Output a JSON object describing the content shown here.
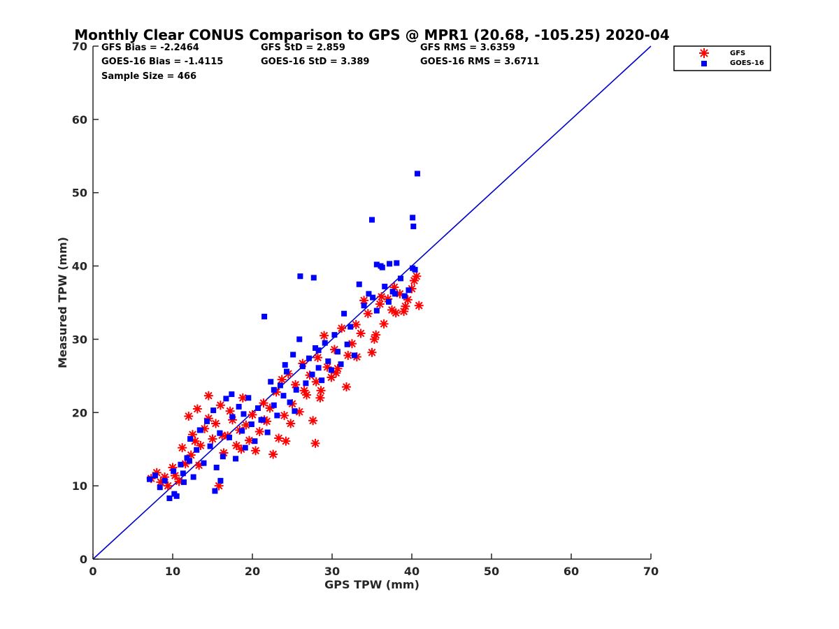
{
  "chart_data": {
    "type": "scatter",
    "title": "Monthly Clear CONUS Comparison to GPS @ MPR1 (20.68, -105.25) 2020-04",
    "xlabel": "GPS TPW (mm)",
    "ylabel": "Measured TPW (mm)",
    "xlim": [
      0,
      70
    ],
    "ylim": [
      0,
      70
    ],
    "xticks": [
      "0",
      "10",
      "20",
      "30",
      "40",
      "50",
      "60",
      "70"
    ],
    "yticks": [
      "0",
      "10",
      "20",
      "30",
      "40",
      "50",
      "60",
      "70"
    ],
    "grid": false,
    "legend_position": "top-right, outside",
    "stats": [
      "GFS Bias = -2.2464",
      "GFS StD = 2.859",
      "GFS RMS = 3.6359",
      "GOES-16 Bias = -1.4115",
      "GOES-16 StD = 3.389",
      "GOES-16 RMS = 3.6711",
      "Sample Size = 466"
    ],
    "reference_line": {
      "name": "1:1 line",
      "color": "#0000cc",
      "x": [
        0,
        70
      ],
      "y": [
        0,
        70
      ]
    },
    "series": [
      {
        "name": "GFS",
        "marker": "asterisk",
        "color": "#ff0000",
        "x": [
          7.3,
          8.0,
          8.5,
          9.0,
          9.4,
          10.0,
          10.3,
          10.8,
          11.2,
          11.6,
          12.0,
          12.3,
          12.8,
          13.1,
          13.3,
          13.5,
          14.0,
          14.5,
          15.0,
          15.4,
          15.8,
          16.0,
          16.4,
          16.9,
          17.2,
          17.5,
          18.0,
          18.4,
          18.8,
          19.2,
          19.6,
          20.0,
          20.4,
          20.9,
          21.4,
          21.8,
          22.2,
          22.6,
          23.0,
          23.3,
          23.7,
          24.0,
          24.2,
          24.5,
          25.0,
          25.4,
          25.9,
          26.3,
          26.8,
          27.2,
          27.6,
          28.0,
          28.2,
          28.6,
          29.0,
          29.4,
          29.9,
          30.3,
          30.7,
          31.2,
          31.8,
          32.5,
          33.1,
          33.6,
          34.0,
          34.5,
          35.0,
          35.5,
          36.0,
          36.5,
          37.0,
          37.5,
          38.0,
          38.5,
          39.0,
          39.5,
          40.0,
          40.3,
          40.6,
          40.9,
          35.3,
          36.2,
          37.8,
          39.2,
          12.5,
          14.5,
          16.2,
          18.6,
          21.5,
          24.8,
          26.5,
          28.5,
          30.5,
          32.0,
          33.0,
          27.9
        ],
        "y": [
          11.0,
          11.8,
          10.5,
          11.2,
          10.0,
          12.5,
          11.4,
          10.6,
          15.2,
          13.0,
          19.5,
          14.2,
          16.1,
          20.5,
          12.8,
          15.5,
          17.8,
          19.2,
          16.4,
          18.5,
          10.0,
          21.0,
          14.5,
          16.8,
          20.2,
          19.0,
          15.5,
          17.6,
          22.0,
          18.3,
          16.2,
          19.7,
          14.8,
          17.4,
          21.3,
          18.8,
          20.6,
          14.3,
          22.8,
          16.5,
          24.5,
          19.6,
          16.1,
          25.3,
          21.2,
          23.8,
          20.1,
          26.7,
          22.4,
          25.1,
          18.9,
          24.2,
          27.5,
          23.0,
          30.5,
          26.2,
          24.8,
          28.6,
          26.0,
          31.5,
          23.5,
          29.4,
          27.6,
          30.8,
          35.3,
          33.5,
          28.2,
          30.6,
          34.8,
          32.1,
          35.5,
          34.0,
          33.6,
          36.2,
          33.8,
          35.4,
          36.9,
          38.0,
          38.6,
          34.6,
          30.0,
          35.8,
          37.1,
          34.5,
          17.0,
          22.3,
          16.9,
          15.0,
          19.0,
          18.5,
          23.0,
          22.0,
          25.4,
          27.8,
          32.0,
          15.8
        ]
      },
      {
        "name": "GOES-16",
        "marker": "square",
        "color": "#0000ff",
        "x": [
          7.1,
          7.8,
          8.4,
          9.0,
          9.6,
          10.1,
          10.5,
          11.0,
          11.4,
          11.8,
          12.2,
          12.6,
          13.0,
          13.4,
          13.9,
          14.3,
          14.7,
          15.1,
          15.5,
          15.9,
          16.3,
          16.7,
          17.1,
          17.5,
          17.9,
          18.3,
          18.7,
          19.1,
          19.5,
          19.9,
          20.3,
          20.7,
          21.1,
          21.5,
          21.9,
          22.3,
          22.7,
          23.1,
          23.5,
          23.9,
          24.3,
          24.7,
          25.1,
          25.5,
          25.9,
          26.3,
          26.7,
          27.1,
          27.5,
          27.9,
          28.3,
          28.7,
          29.1,
          29.5,
          29.9,
          30.3,
          30.7,
          31.1,
          31.5,
          31.9,
          32.3,
          32.8,
          33.4,
          34.0,
          34.6,
          35.1,
          35.6,
          36.1,
          36.6,
          37.1,
          37.6,
          38.1,
          38.6,
          39.1,
          39.6,
          40.1,
          40.4,
          10.2,
          11.3,
          12.1,
          13.5,
          15.3,
          16.0,
          17.4,
          18.9,
          21.3,
          22.7,
          24.1,
          25.3,
          26.0,
          27.7,
          28.3,
          35.0,
          35.6,
          36.3,
          37.2,
          37.9,
          40.1,
          40.2,
          40.7
        ],
        "y": [
          10.9,
          11.4,
          9.8,
          10.7,
          8.3,
          12.0,
          8.6,
          12.9,
          10.5,
          13.8,
          16.4,
          11.2,
          14.9,
          17.6,
          13.1,
          18.8,
          15.4,
          20.3,
          12.5,
          17.2,
          14.0,
          21.9,
          16.6,
          19.4,
          13.7,
          20.8,
          17.5,
          15.2,
          22.0,
          18.4,
          16.1,
          20.6,
          19.0,
          33.1,
          17.3,
          24.2,
          21.0,
          19.6,
          23.7,
          22.3,
          25.6,
          21.4,
          27.9,
          23.1,
          30.0,
          26.3,
          24.0,
          27.4,
          25.2,
          28.8,
          26.1,
          24.4,
          29.5,
          27.0,
          25.8,
          30.6,
          28.3,
          26.6,
          33.5,
          29.3,
          31.7,
          27.8,
          37.5,
          34.6,
          36.2,
          35.7,
          33.9,
          40.0,
          37.2,
          35.1,
          36.5,
          40.4,
          38.3,
          35.9,
          36.7,
          39.7,
          39.5,
          8.9,
          11.7,
          13.4,
          17.6,
          9.3,
          10.7,
          22.5,
          19.8,
          19.0,
          23.1,
          26.5,
          20.2,
          38.6,
          38.4,
          28.5,
          46.3,
          40.2,
          39.8,
          40.3,
          36.2,
          46.6,
          45.4,
          52.6
        ]
      }
    ]
  }
}
